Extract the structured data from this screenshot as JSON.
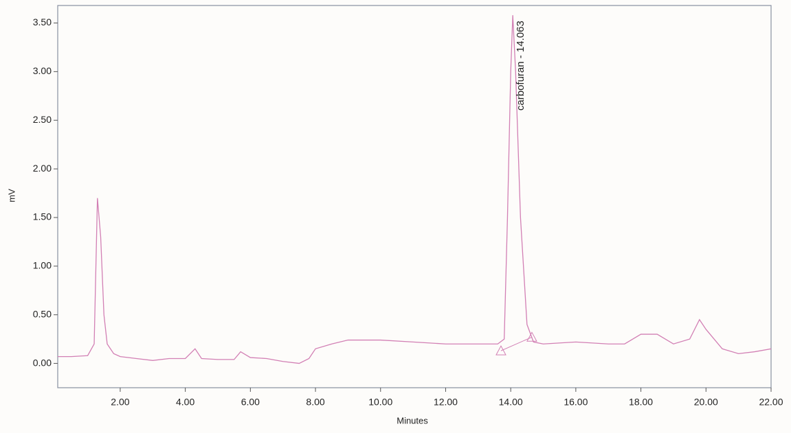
{
  "chart_data": {
    "type": "line",
    "xlabel": "Minutes",
    "ylabel": "mV",
    "annotation": {
      "text": "carbofuran - 14.063",
      "x": 14.063,
      "y": 3.58
    },
    "x": [
      0.08,
      0.5,
      1.0,
      1.2,
      1.3,
      1.4,
      1.5,
      1.6,
      1.8,
      2.0,
      2.5,
      3.0,
      3.5,
      4.0,
      4.3,
      4.5,
      5.0,
      5.5,
      5.7,
      6.0,
      6.5,
      7.0,
      7.5,
      7.8,
      8.0,
      8.5,
      9.0,
      10.0,
      11.0,
      12.0,
      13.0,
      13.6,
      13.8,
      13.9,
      14.0,
      14.063,
      14.15,
      14.3,
      14.5,
      14.7,
      15.0,
      16.0,
      17.0,
      17.5,
      18.0,
      18.5,
      19.0,
      19.5,
      19.8,
      20.0,
      20.5,
      21.0,
      21.5,
      22.0
    ],
    "series": [
      {
        "color": "#d27fb4",
        "values": [
          0.07,
          0.07,
          0.08,
          0.2,
          1.7,
          1.3,
          0.5,
          0.2,
          0.1,
          0.07,
          0.05,
          0.03,
          0.05,
          0.05,
          0.15,
          0.05,
          0.04,
          0.04,
          0.12,
          0.06,
          0.05,
          0.02,
          0.0,
          0.05,
          0.15,
          0.2,
          0.24,
          0.24,
          0.22,
          0.2,
          0.2,
          0.2,
          0.25,
          1.5,
          3.0,
          3.58,
          3.0,
          1.5,
          0.4,
          0.22,
          0.2,
          0.22,
          0.2,
          0.2,
          0.3,
          0.3,
          0.2,
          0.25,
          0.45,
          0.35,
          0.15,
          0.1,
          0.12,
          0.15
        ]
      }
    ],
    "markers": {
      "x": [
        13.7,
        14.65
      ],
      "values": [
        0.13,
        0.27
      ]
    },
    "xlim": [
      0.08,
      22
    ],
    "ylim": [
      -0.25,
      3.68
    ],
    "xticks": [
      {
        "value": 2,
        "label": "2.00"
      },
      {
        "value": 4,
        "label": "4.00"
      },
      {
        "value": 6,
        "label": "6.00"
      },
      {
        "value": 8,
        "label": "8.00"
      },
      {
        "value": 10,
        "label": "10.00"
      },
      {
        "value": 12,
        "label": "12.00"
      },
      {
        "value": 14,
        "label": "14.00"
      },
      {
        "value": 16,
        "label": "16.00"
      },
      {
        "value": 18,
        "label": "18.00"
      },
      {
        "value": 20,
        "label": "20.00"
      },
      {
        "value": 22,
        "label": "22.00"
      }
    ],
    "yticks": [
      {
        "value": 0,
        "label": "0.00"
      },
      {
        "value": 0.5,
        "label": "0.50"
      },
      {
        "value": 1,
        "label": "1.00"
      },
      {
        "value": 1.5,
        "label": "1.50"
      },
      {
        "value": 2,
        "label": "2.00"
      },
      {
        "value": 2.5,
        "label": "2.50"
      },
      {
        "value": 3,
        "label": "3.00"
      },
      {
        "value": 3.5,
        "label": "3.50"
      }
    ]
  }
}
